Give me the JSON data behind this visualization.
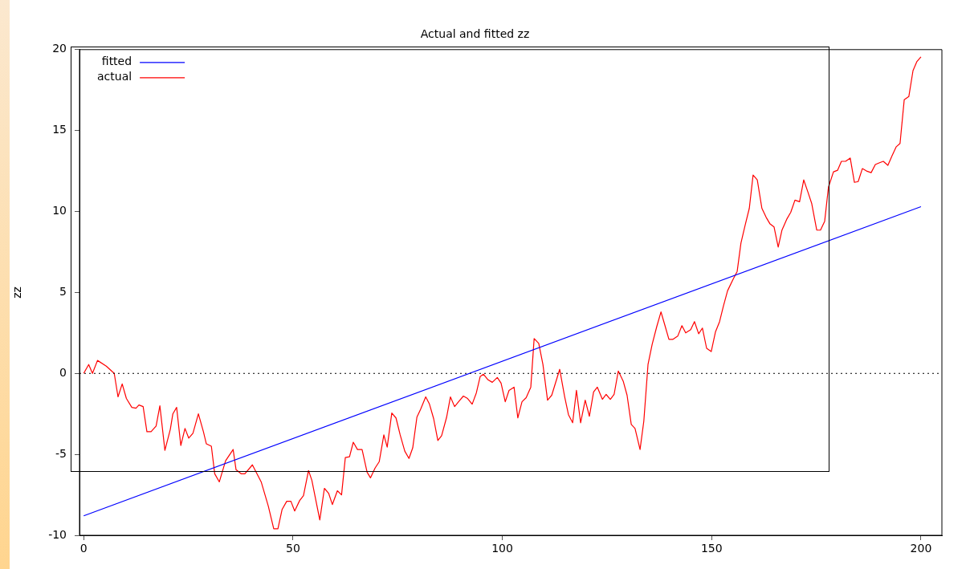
{
  "chart_data": {
    "type": "line",
    "title": "Actual and fitted zz",
    "ylabel": "zz",
    "xlim": [
      -1,
      205
    ],
    "ylim": [
      -10,
      20
    ],
    "xticks": [
      0,
      50,
      100,
      150,
      200
    ],
    "yticks": [
      -10,
      -5,
      0,
      5,
      10,
      15,
      20
    ],
    "grid": false,
    "legend": "top left",
    "marker": "none",
    "line_style": "solid",
    "ref_lines": [
      {
        "axis": "y",
        "value": 0,
        "color": "#000000",
        "line_style": "dotted"
      }
    ],
    "series": [
      {
        "name": "fitted",
        "color": "#0000ff",
        "x": [
          0,
          200
        ],
        "values": [
          -8.8,
          10.3
        ]
      },
      {
        "name": "actual",
        "color": "#ff0000",
        "x": [
          0,
          1.2,
          2.1,
          3.3,
          5.4,
          7.3,
          8.2,
          9.2,
          10.2,
          11.5,
          12.5,
          13.2,
          14.2,
          15.1,
          16.1,
          17.3,
          18.2,
          19.4,
          20.7,
          21.3,
          22.2,
          23.2,
          24.2,
          25.1,
          26.1,
          27.4,
          28.6,
          29.3,
          30.5,
          31.3,
          32.4,
          33.9,
          35.7,
          36.4,
          37.6,
          38.5,
          40.3,
          42.4,
          44.1,
          45.4,
          46.4,
          47.4,
          48.5,
          49.5,
          50.4,
          51.6,
          52.5,
          53.7,
          54.5,
          56.4,
          57.5,
          58.5,
          59.4,
          60.6,
          61.6,
          62.5,
          63.5,
          64.4,
          65.4,
          66.5,
          67.7,
          68.5,
          69.6,
          70.6,
          71.7,
          72.5,
          73.6,
          74.6,
          75.6,
          76.7,
          77.7,
          78.6,
          79.6,
          80.5,
          81.7,
          82.6,
          83.6,
          84.6,
          85.5,
          86.7,
          87.6,
          88.6,
          89.7,
          90.7,
          91.7,
          92.8,
          93.8,
          94.7,
          95.5,
          96.6,
          97.6,
          98.8,
          99.7,
          100.7,
          101.6,
          102.8,
          103.7,
          104.7,
          105.7,
          106.8,
          107.6,
          108.7,
          109.7,
          110.8,
          111.8,
          113.7,
          114.9,
          115.8,
          116.8,
          117.7,
          118.7,
          119.8,
          120.8,
          121.8,
          122.7,
          123.9,
          124.8,
          125.8,
          126.7,
          127.7,
          128.9,
          129.8,
          130.8,
          131.7,
          132.9,
          133.8,
          134.8,
          135.8,
          136.9,
          137.9,
          138.8,
          139.8,
          140.7,
          141.9,
          142.9,
          143.8,
          145.0,
          145.9,
          146.9,
          147.8,
          148.8,
          149.9,
          150.9,
          151.9,
          152.8,
          153.8,
          155.1,
          156.1,
          157.0,
          158.0,
          159.0,
          159.9,
          160.9,
          162.0,
          163.0,
          163.9,
          164.9,
          165.9,
          166.8,
          168.0,
          168.9,
          169.9,
          171.0,
          172.0,
          173.0,
          173.9,
          175.1,
          176.0,
          177.0,
          177.9,
          179.1,
          180.1,
          181.0,
          182.0,
          183.1,
          184.1,
          185.0,
          186.0,
          187.0,
          188.1,
          189.1,
          190.0,
          191.0,
          192.1,
          193.1,
          194.1,
          195.0,
          196.0,
          197.1,
          198.1,
          199.0,
          200.0
        ],
        "values": [
          0,
          0.55,
          0,
          0.8,
          0.45,
          0,
          -1.45,
          -0.65,
          -1.55,
          -2.1,
          -2.15,
          -1.95,
          -2.05,
          -3.6,
          -3.6,
          -3.25,
          -2.0,
          -4.75,
          -3.45,
          -2.5,
          -2.1,
          -4.45,
          -3.4,
          -4.0,
          -3.7,
          -2.5,
          -3.6,
          -4.35,
          -4.5,
          -6.2,
          -6.7,
          -5.4,
          -4.7,
          -5.95,
          -6.2,
          -6.2,
          -5.65,
          -6.7,
          -8.2,
          -9.6,
          -9.6,
          -8.4,
          -7.9,
          -7.9,
          -8.5,
          -7.85,
          -7.55,
          -6.0,
          -6.6,
          -9.05,
          -7.1,
          -7.4,
          -8.1,
          -7.25,
          -7.5,
          -5.2,
          -5.15,
          -4.25,
          -4.7,
          -4.7,
          -6.1,
          -6.45,
          -5.85,
          -5.45,
          -3.8,
          -4.55,
          -2.45,
          -2.75,
          -3.8,
          -4.8,
          -5.25,
          -4.6,
          -2.7,
          -2.2,
          -1.45,
          -1.9,
          -2.8,
          -4.15,
          -3.85,
          -2.7,
          -1.45,
          -2.05,
          -1.7,
          -1.4,
          -1.55,
          -1.9,
          -1.2,
          -0.2,
          -0.05,
          -0.4,
          -0.55,
          -0.25,
          -0.6,
          -1.75,
          -1.05,
          -0.85,
          -2.75,
          -1.75,
          -1.5,
          -0.85,
          2.15,
          1.85,
          0.55,
          -1.65,
          -1.35,
          0.25,
          -1.45,
          -2.55,
          -3.05,
          -1.05,
          -3.05,
          -1.65,
          -2.65,
          -1.15,
          -0.85,
          -1.6,
          -1.3,
          -1.6,
          -1.3,
          0.15,
          -0.5,
          -1.35,
          -3.15,
          -3.4,
          -4.7,
          -2.95,
          0.55,
          1.8,
          2.9,
          3.8,
          3.0,
          2.1,
          2.1,
          2.3,
          2.95,
          2.5,
          2.7,
          3.2,
          2.45,
          2.8,
          1.55,
          1.35,
          2.55,
          3.2,
          4.15,
          5.1,
          5.8,
          6.3,
          8.05,
          9.15,
          10.2,
          12.25,
          11.95,
          10.2,
          9.65,
          9.25,
          9.05,
          7.8,
          8.85,
          9.55,
          9.95,
          10.7,
          10.6,
          11.95,
          11.2,
          10.5,
          8.85,
          8.85,
          9.4,
          11.5,
          12.45,
          12.55,
          13.1,
          13.1,
          13.3,
          11.8,
          11.85,
          12.65,
          12.5,
          12.4,
          12.9,
          13.0,
          13.1,
          12.85,
          13.45,
          14.0,
          14.2,
          16.9,
          17.1,
          18.7,
          19.25,
          19.55
        ]
      }
    ]
  }
}
